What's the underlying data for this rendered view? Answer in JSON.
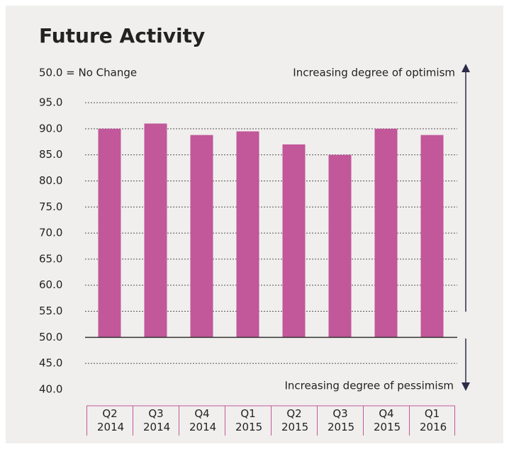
{
  "chart_data": {
    "type": "bar",
    "title": "Future Activity",
    "subtitle": "50.0 = No Change",
    "annotations": [
      "Increasing degree of optimism",
      "Increasing degree of pessimism"
    ],
    "categories": [
      "Q2 2014",
      "Q3 2014",
      "Q4 2014",
      "Q1 2015",
      "Q2 2015",
      "Q3 2015",
      "Q4 2015",
      "Q1 2016"
    ],
    "values": [
      90.0,
      91.0,
      88.8,
      89.5,
      87.0,
      85.0,
      90.0,
      88.8
    ],
    "color": "#c2579a",
    "baseline": 50,
    "ylim": [
      40,
      95
    ],
    "yticks": [
      {
        "value": 95,
        "label": "95.0"
      },
      {
        "value": 90,
        "label": "90.0"
      },
      {
        "value": 85,
        "label": "85.0"
      },
      {
        "value": 80,
        "label": "80.0"
      },
      {
        "value": 75,
        "label": "75.0"
      },
      {
        "value": 70,
        "label": "70.0"
      },
      {
        "value": 65,
        "label": "65.0"
      },
      {
        "value": 60,
        "label": "60.0"
      },
      {
        "value": 55,
        "label": "55.0"
      },
      {
        "value": 50,
        "label": "50.0"
      },
      {
        "value": 45,
        "label": "45.0"
      },
      {
        "value": 40,
        "label": "40.0"
      }
    ],
    "grid": true
  }
}
